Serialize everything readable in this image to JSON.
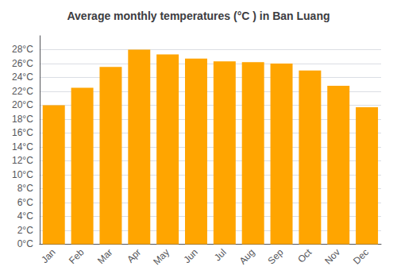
{
  "chart_data": {
    "type": "bar",
    "title": "Average monthly temperatures (°C ) in Ban Luang",
    "categories": [
      "Jan",
      "Feb",
      "Mar",
      "Apr",
      "May",
      "Jun",
      "Jul",
      "Aug",
      "Sep",
      "Oct",
      "Nov",
      "Dec"
    ],
    "values": [
      20.0,
      22.5,
      25.5,
      28.0,
      27.3,
      26.7,
      26.3,
      26.2,
      26.0,
      25.0,
      22.8,
      19.7
    ],
    "color": "#FFA500",
    "ylim": [
      0,
      30
    ],
    "yticks": [
      {
        "value": 0,
        "label": "0°C"
      },
      {
        "value": 2,
        "label": "2°C"
      },
      {
        "value": 4,
        "label": "4°C"
      },
      {
        "value": 6,
        "label": "6°C"
      },
      {
        "value": 8,
        "label": "8°C"
      },
      {
        "value": 10,
        "label": "10°C"
      },
      {
        "value": 12,
        "label": "12°C"
      },
      {
        "value": 14,
        "label": "14°C"
      },
      {
        "value": 16,
        "label": "16°C"
      },
      {
        "value": 18,
        "label": "18°C"
      },
      {
        "value": 20,
        "label": "20°C"
      },
      {
        "value": 22,
        "label": "22°C"
      },
      {
        "value": 24,
        "label": "24°C"
      },
      {
        "value": 26,
        "label": "26°C"
      },
      {
        "value": 28,
        "label": "28°C"
      }
    ],
    "grid": true
  }
}
